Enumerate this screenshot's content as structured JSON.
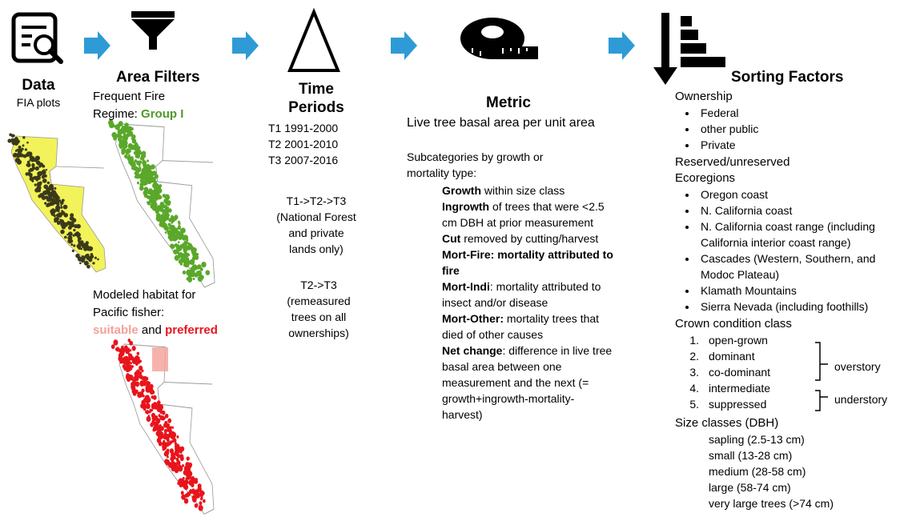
{
  "data_column": {
    "title": "Data",
    "subtitle": "FIA plots"
  },
  "area_filters": {
    "title": "Area Filters",
    "line1": "Frequent Fire",
    "line2": "Regime:",
    "group": "Group I",
    "habitat": [
      "Modeled habitat for",
      "Pacific fisher:"
    ],
    "suitable": "suitable",
    "and": "and",
    "preferred": "preferred"
  },
  "time_periods": {
    "title": [
      "Time",
      "Periods"
    ],
    "periods": [
      "T1 1991-2000",
      "T2 2001-2010",
      "T3 2007-2016"
    ],
    "sequence1": [
      "T1->T2->T3",
      "(National Forest",
      "and private",
      "lands only)"
    ],
    "sequence2": [
      "T2->T3",
      "(remeasured",
      "trees on all",
      "ownerships)"
    ]
  },
  "metric": {
    "title": "Metric",
    "description": "Live tree basal area per unit area",
    "subcategories": "Subcategories by growth or mortality type:",
    "items": [
      {
        "term": "Growth",
        "text": "within size class"
      },
      {
        "term": "Ingrowth",
        "text": "of trees that were <2.5 cm DBH at prior measurement"
      },
      {
        "term": "Cut",
        "text": "removed by cutting/harvest"
      },
      {
        "term": "Mort-Fire: mortality attributed to fire"
      },
      {
        "term": "Mort-Indi",
        "text": ": mortality attributed to insect and/or disease"
      },
      {
        "term": "Mort-Other:",
        "text": "mortality trees that died of other causes"
      },
      {
        "term": "Net change",
        "text": ": difference in live tree basal area between one measurement and the next (= growth+ingrowth-mortality-harvest)"
      }
    ]
  },
  "sorting_factors": {
    "title": "Sorting Factors",
    "ownership": {
      "label": "Ownership",
      "items": [
        "Federal",
        "other public",
        "Private"
      ]
    },
    "reserved": "Reserved/unreserved",
    "ecoregions": {
      "label": "Ecoregions",
      "items": [
        "Oregon coast",
        "N. California coast",
        "N. California coast range (including California interior coast range)",
        "Cascades (Western, Southern, and Modoc Plateau)",
        "Klamath Mountains",
        "Sierra Nevada (including foothills)"
      ]
    },
    "crown": {
      "label": "Crown condition class",
      "items": [
        {
          "number": "1.",
          "label": "open-grown"
        },
        {
          "number": "2.",
          "label": "dominant"
        },
        {
          "number": "3.",
          "label": "co-dominant"
        },
        {
          "number": "4.",
          "label": "intermediate"
        },
        {
          "number": "5.",
          "label": "suppressed"
        }
      ],
      "groups": [
        "overstory",
        "understory"
      ]
    },
    "size": {
      "label": "Size classes (DBH)",
      "items": [
        "sapling (2.5-13 cm)",
        "small (13-28 cm)",
        "medium (28-58 cm)",
        "large (58-74 cm)",
        "very large trees (>74 cm)"
      ]
    }
  }
}
